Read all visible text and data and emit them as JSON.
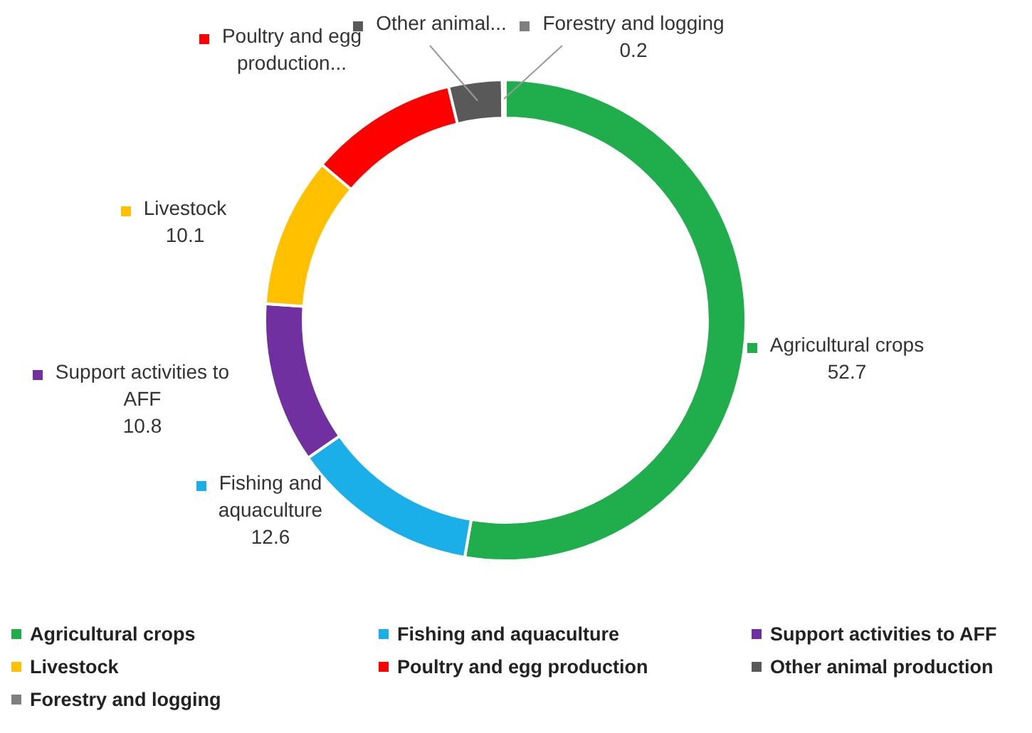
{
  "chart_data": {
    "type": "donut",
    "categories": [
      "Agricultural crops",
      "Fishing and aquaculture",
      "Support activities to AFF",
      "Livestock",
      "Poultry and egg production",
      "Other animal production",
      "Forestry and logging"
    ],
    "values": [
      52.7,
      12.6,
      10.8,
      10.1,
      10.0,
      3.6,
      0.2
    ],
    "colors": [
      "#1fae4b",
      "#1aafe8",
      "#7030a0",
      "#ffc000",
      "#ff0000",
      "#595959",
      "#7f7f7f"
    ],
    "value_labels": [
      "52.7",
      "12.6",
      "10.8",
      "10.1",
      null,
      null,
      "0.2"
    ],
    "annotations": [
      {
        "text": "Poultry and egg production...",
        "x": "Poultry and egg production"
      },
      {
        "text": "Other animal...",
        "x": "Other animal production"
      }
    ],
    "legend": "bottom"
  }
}
